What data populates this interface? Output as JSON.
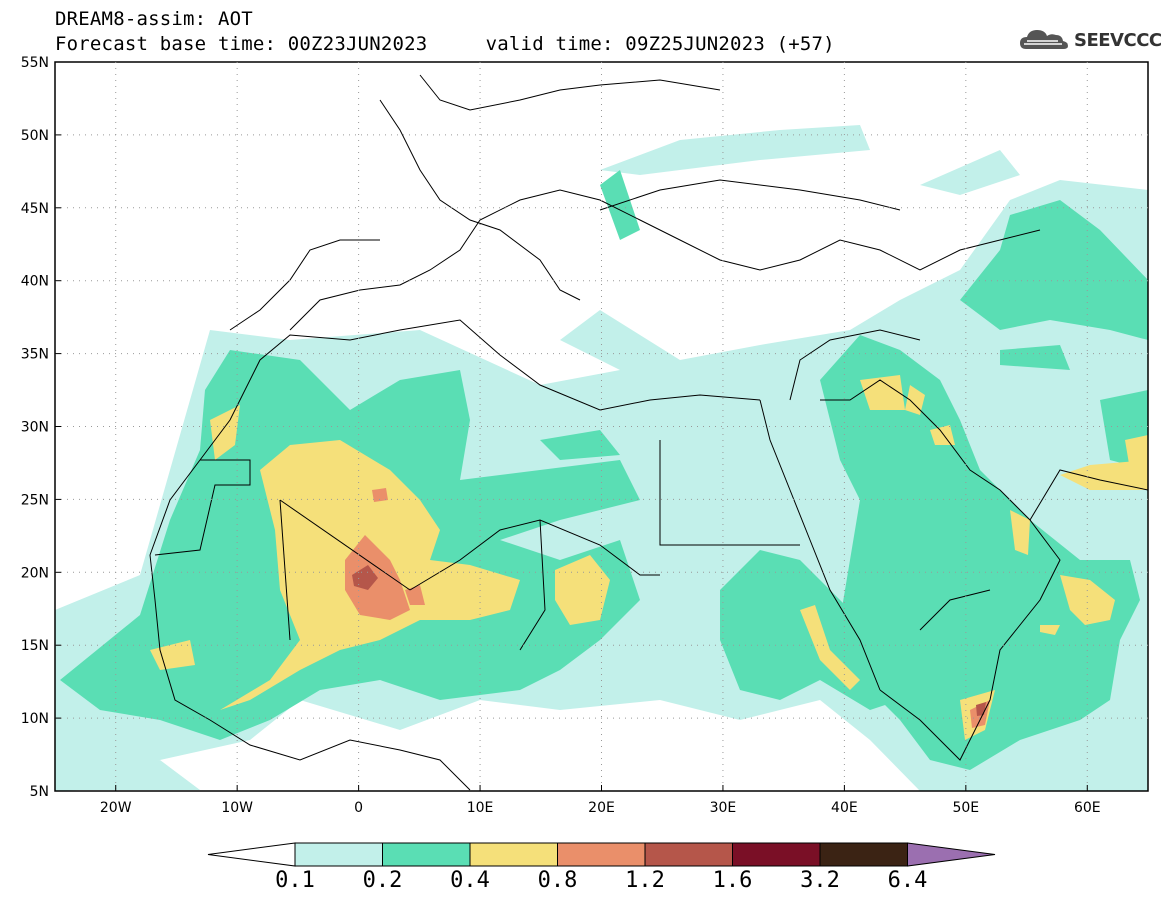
{
  "header": {
    "title_line1": "DREAM8-assim: AOT",
    "title_line2": "Forecast base time: 00Z23JUN2023     valid time: 09Z25JUN2023 (+57)",
    "logo_text": "SEEVCCC",
    "logo_icon": "cloud-icon"
  },
  "map": {
    "lon_range": [
      -25,
      65
    ],
    "lat_range": [
      5,
      55
    ],
    "lat_ticks": [
      "5N",
      "10N",
      "15N",
      "20N",
      "25N",
      "30N",
      "35N",
      "40N",
      "45N",
      "50N",
      "55N"
    ],
    "lon_ticks": [
      "20W",
      "10W",
      "0",
      "10E",
      "20E",
      "30E",
      "40E",
      "50E",
      "60E"
    ],
    "grid": "dotted"
  },
  "colorbar": {
    "labels": [
      "0.1",
      "0.2",
      "0.4",
      "0.8",
      "1.2",
      "1.6",
      "3.2",
      "6.4"
    ],
    "colors": [
      "#c2f0ea",
      "#5ade b4",
      "#f5e07a",
      "#ea8f6a",
      "#b5564a",
      "#7a0f26",
      "#3b2314",
      "#9b6fb0"
    ],
    "under_color": "#ffffff",
    "over_color": "#9b6fb0"
  }
}
